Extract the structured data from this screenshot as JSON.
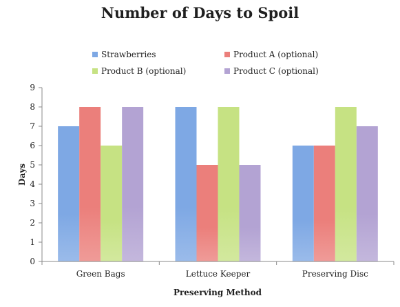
{
  "chart_data": {
    "type": "bar",
    "title": "Number of Days to Spoil",
    "xlabel": "Preserving Method",
    "ylabel": "Days",
    "ylim": [
      0,
      9
    ],
    "yticks": [
      0,
      1,
      2,
      3,
      4,
      5,
      6,
      7,
      8,
      9
    ],
    "grid": false,
    "legend_position": "top",
    "categories": [
      "Green Bags",
      "Lettuce Keeper",
      "Preserving Disc"
    ],
    "series": [
      {
        "name": "Strawberries",
        "color": "#7ea8e4",
        "values": [
          7,
          8,
          6
        ]
      },
      {
        "name": "Product A (optional)",
        "color": "#eb7f7b",
        "values": [
          8,
          5,
          6
        ]
      },
      {
        "name": "Product B (optional)",
        "color": "#c6e283",
        "values": [
          6,
          8,
          8
        ]
      },
      {
        "name": "Product C (optional)",
        "color": "#b3a3d3",
        "values": [
          8,
          5,
          7
        ]
      }
    ]
  }
}
